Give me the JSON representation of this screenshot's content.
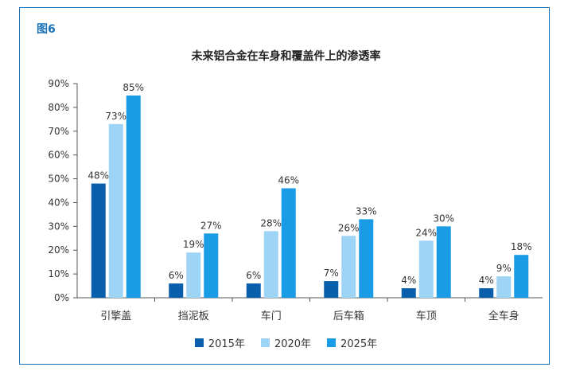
{
  "figure_label": "图6",
  "colors": {
    "frame": "#1a73b8",
    "axis": "#555555",
    "text": "#333333"
  },
  "chart_data": {
    "type": "bar",
    "title": "未来铝合金在车身和覆盖件上的渗透率",
    "xlabel": "",
    "ylabel": "",
    "ylim": [
      0,
      90
    ],
    "yticks": [
      "0%",
      "10%",
      "20%",
      "30%",
      "40%",
      "50%",
      "60%",
      "70%",
      "80%",
      "90%"
    ],
    "categories": [
      "引擎盖",
      "挡泥板",
      "车门",
      "后车箱",
      "车顶",
      "全车身"
    ],
    "series": [
      {
        "name": "2015年",
        "color": "#0a5fad",
        "values": [
          48,
          6,
          6,
          7,
          4,
          4
        ],
        "labels": [
          "48%",
          "6%",
          "6%",
          "7%",
          "4%",
          "4%"
        ]
      },
      {
        "name": "2020年",
        "color": "#9dd3f5",
        "values": [
          73,
          19,
          28,
          26,
          24,
          9
        ],
        "labels": [
          "73%",
          "19%",
          "28%",
          "26%",
          "24%",
          "9%"
        ]
      },
      {
        "name": "2025年",
        "color": "#1a9be6",
        "values": [
          85,
          27,
          46,
          33,
          30,
          18
        ],
        "labels": [
          "85%",
          "27%",
          "46%",
          "33%",
          "30%",
          "18%"
        ]
      }
    ],
    "legend_position": "bottom",
    "grid": false
  }
}
